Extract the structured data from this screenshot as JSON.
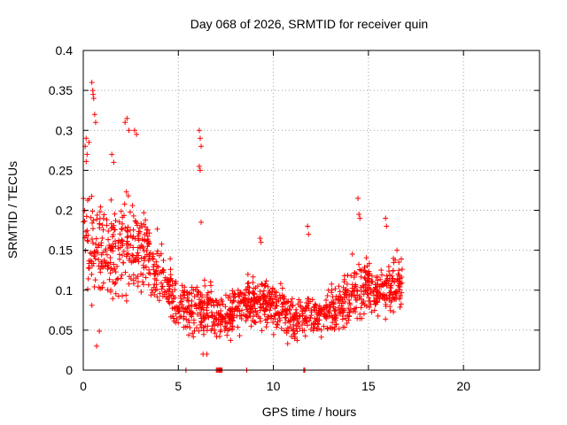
{
  "chart_data": {
    "type": "scatter",
    "title": "Day 068 of 2026, SRMTID for receiver quin",
    "xlabel": "GPS time / hours",
    "ylabel": "SRMTID / TECUs",
    "xlim": [
      0,
      24
    ],
    "ylim": [
      0,
      0.4
    ],
    "x_ticks": [
      0,
      5,
      10,
      15,
      20
    ],
    "y_ticks": [
      0,
      0.05,
      0.1,
      0.15,
      0.2,
      0.25,
      0.3,
      0.35,
      0.4
    ],
    "x_tick_labels": [
      "0",
      "5",
      "10",
      "15",
      "20"
    ],
    "y_tick_labels": [
      "0",
      "0.05",
      "0.1",
      "0.15",
      "0.2",
      "0.25",
      "0.3",
      "0.35",
      "0.4"
    ],
    "grid": true,
    "marker": "plus",
    "marker_color": "#ff0000",
    "series": [
      {
        "envelope_x": [
          0.0,
          0.2,
          0.5,
          1.0,
          1.5,
          2.0,
          2.5,
          3.0,
          3.5,
          4.0,
          4.5,
          5.0,
          5.5,
          6.0,
          6.5,
          7.0,
          7.5,
          8.0,
          8.5,
          9.0,
          9.5,
          10.0,
          10.5,
          11.0,
          11.5,
          12.0,
          12.5,
          13.0,
          13.5,
          14.0,
          14.5,
          15.0,
          15.5,
          16.0,
          16.5
        ],
        "envelope_center": [
          0.21,
          0.17,
          0.14,
          0.14,
          0.15,
          0.15,
          0.16,
          0.15,
          0.14,
          0.12,
          0.1,
          0.08,
          0.075,
          0.08,
          0.08,
          0.07,
          0.065,
          0.075,
          0.08,
          0.085,
          0.085,
          0.08,
          0.075,
          0.065,
          0.07,
          0.07,
          0.07,
          0.075,
          0.08,
          0.09,
          0.105,
          0.1,
          0.1,
          0.105,
          0.105
        ],
        "envelope_spread": [
          0.06,
          0.07,
          0.07,
          0.06,
          0.06,
          0.06,
          0.06,
          0.06,
          0.05,
          0.04,
          0.035,
          0.03,
          0.03,
          0.035,
          0.03,
          0.025,
          0.025,
          0.03,
          0.03,
          0.03,
          0.03,
          0.03,
          0.025,
          0.025,
          0.025,
          0.025,
          0.025,
          0.025,
          0.025,
          0.035,
          0.04,
          0.035,
          0.03,
          0.03,
          0.03
        ],
        "x_end": 16.8,
        "outliers": [
          [
            0.1,
            0.28
          ],
          [
            0.15,
            0.29
          ],
          [
            0.2,
            0.27
          ],
          [
            0.3,
            0.285
          ],
          [
            0.45,
            0.36
          ],
          [
            0.5,
            0.35
          ],
          [
            0.52,
            0.345
          ],
          [
            0.55,
            0.34
          ],
          [
            0.6,
            0.32
          ],
          [
            0.65,
            0.31
          ],
          [
            0.7,
            0.03
          ],
          [
            1.5,
            0.27
          ],
          [
            1.6,
            0.26
          ],
          [
            2.2,
            0.31
          ],
          [
            2.3,
            0.315
          ],
          [
            2.4,
            0.3
          ],
          [
            2.7,
            0.3
          ],
          [
            2.8,
            0.295
          ],
          [
            6.1,
            0.3
          ],
          [
            6.15,
            0.29
          ],
          [
            6.2,
            0.28
          ],
          [
            6.1,
            0.255
          ],
          [
            6.15,
            0.25
          ],
          [
            6.2,
            0.185
          ],
          [
            6.3,
            0.02
          ],
          [
            6.5,
            0.02
          ],
          [
            9.3,
            0.165
          ],
          [
            9.35,
            0.16
          ],
          [
            11.8,
            0.18
          ],
          [
            11.85,
            0.17
          ],
          [
            14.45,
            0.215
          ],
          [
            14.5,
            0.195
          ],
          [
            14.55,
            0.19
          ],
          [
            15.9,
            0.19
          ],
          [
            15.95,
            0.18
          ],
          [
            16.5,
            0.15
          ],
          [
            16.6,
            0.135
          ]
        ],
        "zero_points": [
          5.4,
          7.0,
          7.05,
          7.1,
          7.15,
          7.2,
          7.25,
          7.3,
          8.6,
          11.6,
          11.65
        ]
      }
    ]
  }
}
